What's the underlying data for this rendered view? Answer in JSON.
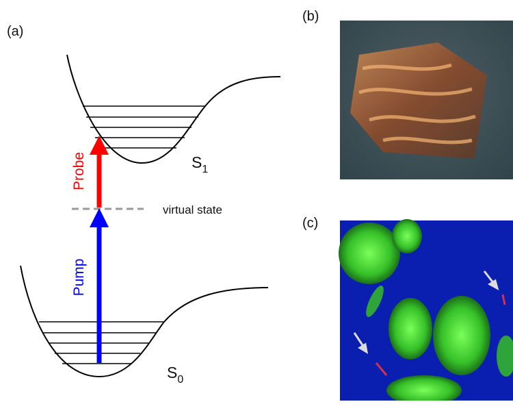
{
  "panels": {
    "a": {
      "label": "(a)",
      "probe": "Probe",
      "pump": "Pump",
      "virtual_state": "virtual state",
      "upper_state": {
        "letter": "S",
        "subscript": "1"
      },
      "lower_state": {
        "letter": "S",
        "subscript": "0"
      }
    },
    "b": {
      "label": "(b)"
    },
    "c": {
      "label": "(c)"
    }
  }
}
